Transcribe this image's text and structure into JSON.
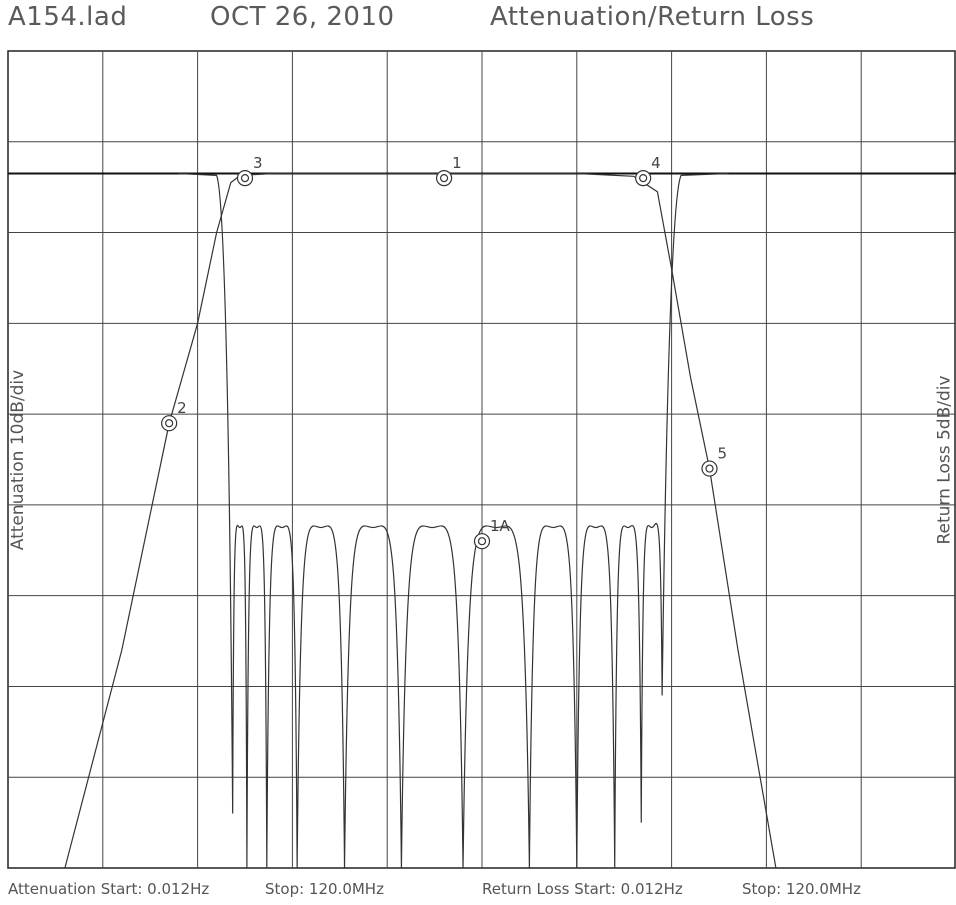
{
  "header": {
    "file": "A154.lad",
    "date": "OCT 26, 2010",
    "title": "Attenuation/Return Loss"
  },
  "footer": {
    "att_start": "Attenuation Start: 0.012Hz",
    "att_stop": "Stop: 120.0MHz",
    "rl_start": "Return Loss Start: 0.012Hz",
    "rl_stop": "Stop: 120.0MHz"
  },
  "chart_data": {
    "type": "line",
    "left_axis_label": "Attenuation 10dB/div",
    "right_axis_label": "Return Loss 5dB/div",
    "grid": true,
    "divisions": {
      "x": 10,
      "y": 9
    },
    "x_range": [
      0,
      10
    ],
    "y_range": [
      0,
      9
    ],
    "markers": [
      {
        "label": "1",
        "x": 4.6,
        "y": 7.6
      },
      {
        "label": "2",
        "x": 1.7,
        "y": 4.9
      },
      {
        "label": "3",
        "x": 2.5,
        "y": 7.6
      },
      {
        "label": "4",
        "x": 6.7,
        "y": 7.6
      },
      {
        "label": "5",
        "x": 7.4,
        "y": 4.4
      },
      {
        "label": "1A",
        "x": 5.0,
        "y": 3.6
      }
    ],
    "attenuation_curve": [
      [
        0.6,
        0.0
      ],
      [
        1.2,
        2.4
      ],
      [
        1.7,
        4.9
      ],
      [
        2.0,
        6.0
      ],
      [
        2.2,
        7.0
      ],
      [
        2.35,
        7.55
      ],
      [
        2.45,
        7.63
      ],
      [
        2.8,
        7.65
      ],
      [
        6.0,
        7.65
      ],
      [
        6.6,
        7.62
      ],
      [
        6.85,
        7.45
      ],
      [
        7.0,
        6.6
      ],
      [
        7.2,
        5.4
      ],
      [
        7.4,
        4.4
      ],
      [
        7.7,
        2.4
      ],
      [
        8.1,
        0.0
      ]
    ],
    "return_loss_curve": {
      "plateau_y": 7.65,
      "lobe_peak_y": 3.75,
      "nulls_x": [
        2.37,
        2.52,
        2.73,
        3.05,
        3.55,
        4.15,
        4.8,
        5.5,
        6.0,
        6.4,
        6.68,
        6.9
      ],
      "nulls_y": [
        0.6,
        0.0,
        0.0,
        0.0,
        0.0,
        0.0,
        0.0,
        0.0,
        0.0,
        0.0,
        0.5,
        1.9
      ]
    }
  }
}
